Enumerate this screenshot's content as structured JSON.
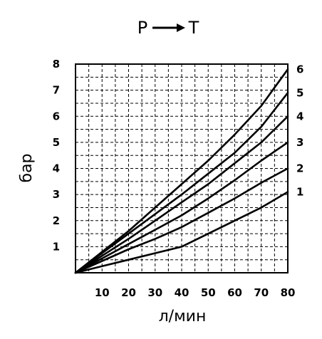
{
  "chart_data": {
    "type": "line",
    "title": "P → T",
    "title_from": "P",
    "title_to": "T",
    "xlabel": "л/мин",
    "ylabel": "бар",
    "xlim": [
      0,
      80
    ],
    "ylim": [
      0,
      8
    ],
    "x_ticks": [
      10,
      20,
      30,
      40,
      50,
      60,
      70,
      80
    ],
    "y_ticks": [
      1,
      2,
      3,
      4,
      5,
      6,
      7,
      8
    ],
    "grid": true,
    "grid_style": "dashed",
    "series": [
      {
        "name": "1",
        "x": [
          0,
          10,
          20,
          30,
          40,
          50,
          60,
          70,
          80
        ],
        "y": [
          0,
          0.25,
          0.5,
          0.75,
          1.0,
          1.5,
          2.0,
          2.5,
          3.1
        ]
      },
      {
        "name": "2",
        "x": [
          0,
          10,
          20,
          30,
          40,
          50,
          60,
          70,
          80
        ],
        "y": [
          0,
          0.45,
          0.9,
          1.3,
          1.75,
          2.3,
          2.85,
          3.45,
          4.0
        ]
      },
      {
        "name": "3",
        "x": [
          0,
          10,
          20,
          30,
          40,
          50,
          60,
          70,
          80
        ],
        "y": [
          0,
          0.55,
          1.1,
          1.65,
          2.2,
          2.85,
          3.55,
          4.3,
          5.0
        ]
      },
      {
        "name": "4",
        "x": [
          0,
          10,
          20,
          30,
          40,
          50,
          60,
          70,
          80
        ],
        "y": [
          0,
          0.65,
          1.3,
          2.0,
          2.7,
          3.4,
          4.2,
          5.0,
          6.0
        ]
      },
      {
        "name": "5",
        "x": [
          0,
          10,
          20,
          30,
          40,
          50,
          60,
          70,
          80
        ],
        "y": [
          0,
          0.75,
          1.5,
          2.25,
          3.0,
          3.8,
          4.6,
          5.6,
          6.9
        ]
      },
      {
        "name": "6",
        "x": [
          0,
          10,
          20,
          30,
          40,
          50,
          60,
          70,
          80
        ],
        "y": [
          0,
          0.8,
          1.6,
          2.5,
          3.4,
          4.3,
          5.3,
          6.4,
          7.8
        ]
      }
    ]
  }
}
